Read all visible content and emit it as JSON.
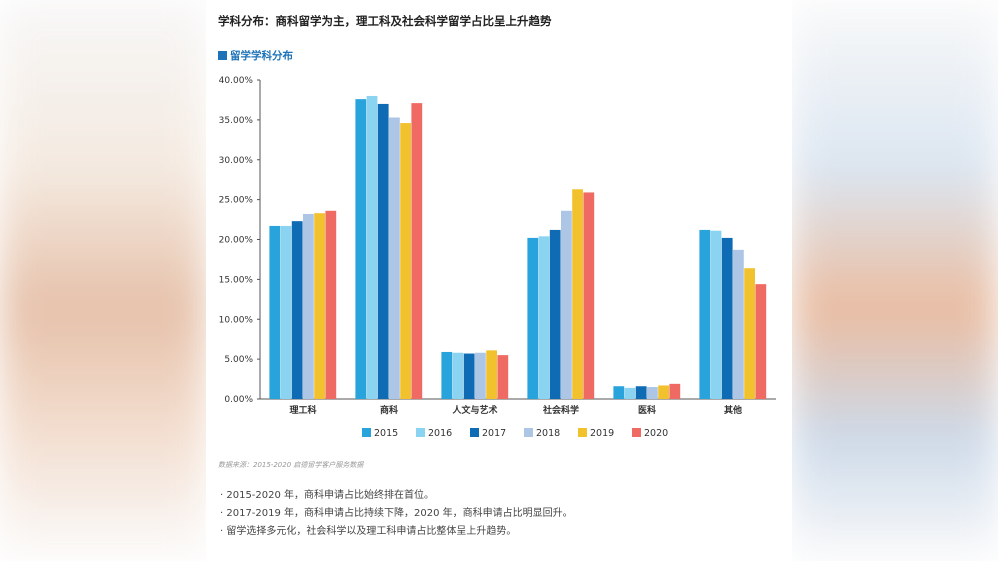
{
  "title": "学科分布：商科留学为主，理工科及社会科学留学占比呈上升趋势",
  "subtitle": "留学学科分布",
  "source": "数据来源：2015-2020 启德留学客户服务数据",
  "notes": [
    "· 2015-2020 年，商科申请占比始终排在首位。",
    "· 2017-2019 年，商科申请占比持续下降，2020 年，商科申请占比明显回升。",
    "· 留学选择多元化，社会科学以及理工科申请占比整体呈上升趋势。"
  ],
  "chart_data": {
    "type": "bar",
    "categories": [
      "理工科",
      "商科",
      "人文与艺术",
      "社会科学",
      "医科",
      "其他"
    ],
    "series": [
      {
        "name": "2015",
        "color": "#29a3dc",
        "values": [
          21.7,
          37.6,
          5.9,
          20.2,
          1.6,
          21.2
        ]
      },
      {
        "name": "2016",
        "color": "#8ad4f1",
        "values": [
          21.7,
          38.0,
          5.8,
          20.4,
          1.4,
          21.1
        ]
      },
      {
        "name": "2017",
        "color": "#0f6bb4",
        "values": [
          22.3,
          37.0,
          5.7,
          21.2,
          1.6,
          20.2
        ]
      },
      {
        "name": "2018",
        "color": "#aec6e6",
        "values": [
          23.2,
          35.3,
          5.8,
          23.6,
          1.5,
          18.7
        ]
      },
      {
        "name": "2019",
        "color": "#f2c22e",
        "values": [
          23.3,
          34.6,
          6.1,
          26.3,
          1.7,
          16.4
        ]
      },
      {
        "name": "2020",
        "color": "#ef6a62",
        "values": [
          23.6,
          37.1,
          5.5,
          25.9,
          1.9,
          14.4
        ]
      }
    ],
    "ylim": [
      0,
      40
    ],
    "yticks": [
      "0.00%",
      "5.00%",
      "10.00%",
      "15.00%",
      "20.00%",
      "25.00%",
      "30.00%",
      "35.00%",
      "40.00%"
    ],
    "legend_position": "bottom",
    "grid": false
  }
}
